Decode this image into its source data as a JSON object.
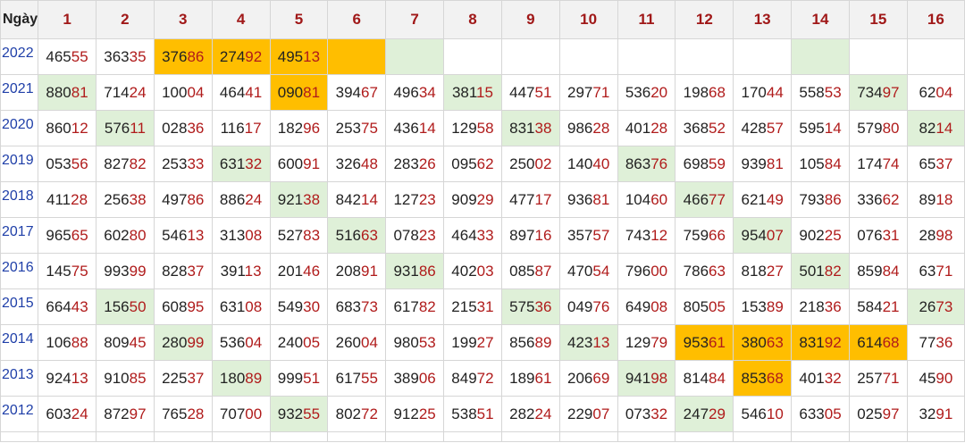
{
  "header": {
    "corner_label": "Ngày",
    "days": [
      "1",
      "2",
      "3",
      "4",
      "5",
      "6",
      "7",
      "8",
      "9",
      "10",
      "11",
      "12",
      "13",
      "14",
      "15",
      "16"
    ]
  },
  "colors": {
    "highlight": "#ffbe00",
    "marked": "#dff0d8",
    "tail_digits": "#b01b1b",
    "year_text": "#1f3fa8"
  },
  "rows": [
    {
      "year": "2022",
      "cells": [
        {
          "v": "46555"
        },
        {
          "v": "36335"
        },
        {
          "v": "37686",
          "h": "yellow"
        },
        {
          "v": "27492",
          "h": "yellow"
        },
        {
          "v": "49513",
          "h": "yellow"
        },
        {
          "v": "",
          "h": "yellow"
        },
        {
          "v": "",
          "h": "green"
        },
        {
          "v": ""
        },
        {
          "v": ""
        },
        {
          "v": ""
        },
        {
          "v": ""
        },
        {
          "v": ""
        },
        {
          "v": ""
        },
        {
          "v": "",
          "h": "green"
        },
        {
          "v": ""
        },
        {
          "v": ""
        }
      ]
    },
    {
      "year": "2021",
      "cells": [
        {
          "v": "88081",
          "h": "green"
        },
        {
          "v": "71424"
        },
        {
          "v": "10004"
        },
        {
          "v": "46441"
        },
        {
          "v": "09081",
          "h": "yellow"
        },
        {
          "v": "39467"
        },
        {
          "v": "49634"
        },
        {
          "v": "38115",
          "h": "green"
        },
        {
          "v": "44751"
        },
        {
          "v": "29771"
        },
        {
          "v": "53620"
        },
        {
          "v": "19868"
        },
        {
          "v": "17044"
        },
        {
          "v": "55853"
        },
        {
          "v": "73497",
          "h": "green"
        },
        {
          "v": "6204"
        }
      ]
    },
    {
      "year": "2020",
      "cells": [
        {
          "v": "86012"
        },
        {
          "v": "57611",
          "h": "green"
        },
        {
          "v": "02836"
        },
        {
          "v": "11617"
        },
        {
          "v": "18296"
        },
        {
          "v": "25375"
        },
        {
          "v": "43614"
        },
        {
          "v": "12958"
        },
        {
          "v": "83138",
          "h": "green"
        },
        {
          "v": "98628"
        },
        {
          "v": "40128"
        },
        {
          "v": "36852"
        },
        {
          "v": "42857"
        },
        {
          "v": "59514"
        },
        {
          "v": "57980"
        },
        {
          "v": "8214",
          "h": "green"
        }
      ]
    },
    {
      "year": "2019",
      "cells": [
        {
          "v": "05356"
        },
        {
          "v": "82782"
        },
        {
          "v": "25333"
        },
        {
          "v": "63132",
          "h": "green"
        },
        {
          "v": "60091"
        },
        {
          "v": "32648"
        },
        {
          "v": "28326"
        },
        {
          "v": "09562"
        },
        {
          "v": "25002"
        },
        {
          "v": "14040"
        },
        {
          "v": "86376",
          "h": "green"
        },
        {
          "v": "69859"
        },
        {
          "v": "93981"
        },
        {
          "v": "10584"
        },
        {
          "v": "17474"
        },
        {
          "v": "6537"
        }
      ]
    },
    {
      "year": "2018",
      "cells": [
        {
          "v": "41128"
        },
        {
          "v": "25638"
        },
        {
          "v": "49786"
        },
        {
          "v": "88624"
        },
        {
          "v": "92138",
          "h": "green"
        },
        {
          "v": "84214"
        },
        {
          "v": "12723"
        },
        {
          "v": "90929"
        },
        {
          "v": "47717"
        },
        {
          "v": "93681"
        },
        {
          "v": "10460"
        },
        {
          "v": "46677",
          "h": "green"
        },
        {
          "v": "62149"
        },
        {
          "v": "79386"
        },
        {
          "v": "33662"
        },
        {
          "v": "8918"
        }
      ]
    },
    {
      "year": "2017",
      "cells": [
        {
          "v": "96565"
        },
        {
          "v": "60280"
        },
        {
          "v": "54613"
        },
        {
          "v": "31308"
        },
        {
          "v": "52783"
        },
        {
          "v": "51663",
          "h": "green"
        },
        {
          "v": "07823"
        },
        {
          "v": "46433"
        },
        {
          "v": "89716"
        },
        {
          "v": "35757"
        },
        {
          "v": "74312"
        },
        {
          "v": "75966"
        },
        {
          "v": "95407",
          "h": "green"
        },
        {
          "v": "90225"
        },
        {
          "v": "07631"
        },
        {
          "v": "2898"
        }
      ]
    },
    {
      "year": "2016",
      "cells": [
        {
          "v": "14575"
        },
        {
          "v": "99399"
        },
        {
          "v": "82837"
        },
        {
          "v": "39113"
        },
        {
          "v": "20146"
        },
        {
          "v": "20891"
        },
        {
          "v": "93186",
          "h": "green"
        },
        {
          "v": "40203"
        },
        {
          "v": "08587"
        },
        {
          "v": "47054"
        },
        {
          "v": "79600"
        },
        {
          "v": "78663"
        },
        {
          "v": "81827"
        },
        {
          "v": "50182",
          "h": "green"
        },
        {
          "v": "85984"
        },
        {
          "v": "6371"
        }
      ]
    },
    {
      "year": "2015",
      "cells": [
        {
          "v": "66443"
        },
        {
          "v": "15650",
          "h": "green"
        },
        {
          "v": "60895"
        },
        {
          "v": "63108"
        },
        {
          "v": "54930"
        },
        {
          "v": "68373"
        },
        {
          "v": "61782"
        },
        {
          "v": "21531"
        },
        {
          "v": "57536",
          "h": "green"
        },
        {
          "v": "04976"
        },
        {
          "v": "64908"
        },
        {
          "v": "80505"
        },
        {
          "v": "15389"
        },
        {
          "v": "21836"
        },
        {
          "v": "58421"
        },
        {
          "v": "2673",
          "h": "green"
        }
      ]
    },
    {
      "year": "2014",
      "cells": [
        {
          "v": "10688"
        },
        {
          "v": "80945"
        },
        {
          "v": "28099",
          "h": "green"
        },
        {
          "v": "53604"
        },
        {
          "v": "24005"
        },
        {
          "v": "26004"
        },
        {
          "v": "98053"
        },
        {
          "v": "19927"
        },
        {
          "v": "85689"
        },
        {
          "v": "42313",
          "h": "green"
        },
        {
          "v": "12979"
        },
        {
          "v": "95361",
          "h": "yellow"
        },
        {
          "v": "38063",
          "h": "yellow"
        },
        {
          "v": "83192",
          "h": "yellow"
        },
        {
          "v": "61468",
          "h": "yellow"
        },
        {
          "v": "7736"
        }
      ]
    },
    {
      "year": "2013",
      "cells": [
        {
          "v": "92413"
        },
        {
          "v": "91085"
        },
        {
          "v": "22537"
        },
        {
          "v": "18089",
          "h": "green"
        },
        {
          "v": "99951"
        },
        {
          "v": "61755"
        },
        {
          "v": "38906"
        },
        {
          "v": "84972"
        },
        {
          "v": "18961"
        },
        {
          "v": "20669"
        },
        {
          "v": "94198",
          "h": "green"
        },
        {
          "v": "81484"
        },
        {
          "v": "85368",
          "h": "yellow"
        },
        {
          "v": "40132"
        },
        {
          "v": "25771"
        },
        {
          "v": "4590"
        }
      ]
    },
    {
      "year": "2012",
      "cells": [
        {
          "v": "60324"
        },
        {
          "v": "87297"
        },
        {
          "v": "76528"
        },
        {
          "v": "70700"
        },
        {
          "v": "93255",
          "h": "green"
        },
        {
          "v": "80272"
        },
        {
          "v": "91225"
        },
        {
          "v": "53851"
        },
        {
          "v": "28224"
        },
        {
          "v": "22907"
        },
        {
          "v": "07332"
        },
        {
          "v": "24729",
          "h": "green"
        },
        {
          "v": "54610"
        },
        {
          "v": "63305"
        },
        {
          "v": "02597"
        },
        {
          "v": "3291"
        }
      ]
    }
  ]
}
